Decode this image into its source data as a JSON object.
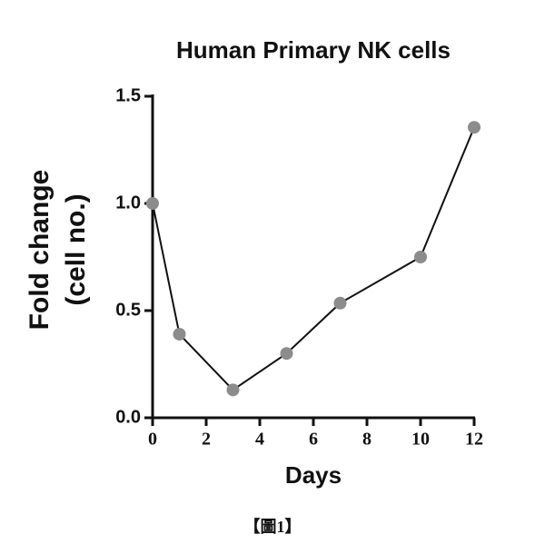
{
  "chart_data": {
    "type": "line",
    "title": "Human Primary NK cells",
    "xlabel": "Days",
    "ylabel": [
      "Fold change",
      "(cell no.)"
    ],
    "caption": "【圖1】",
    "x": [
      0,
      1,
      3,
      5,
      7,
      10,
      12
    ],
    "series": [
      {
        "name": "NK cells",
        "color": "#8c8c8c",
        "line_color": "#111111",
        "values": [
          1.0,
          0.39,
          0.13,
          0.3,
          0.535,
          0.75,
          1.355
        ]
      }
    ],
    "xlim": [
      0,
      12
    ],
    "xticks": [
      0,
      2,
      4,
      6,
      8,
      10,
      12
    ],
    "ylim": [
      0,
      1.5
    ],
    "yticks": [
      {
        "value": 0,
        "label": "0.0"
      },
      0.5,
      {
        "value": 1,
        "label": "1.0"
      },
      {
        "value": 1.5,
        "label": "1.5"
      }
    ],
    "grid": false
  }
}
